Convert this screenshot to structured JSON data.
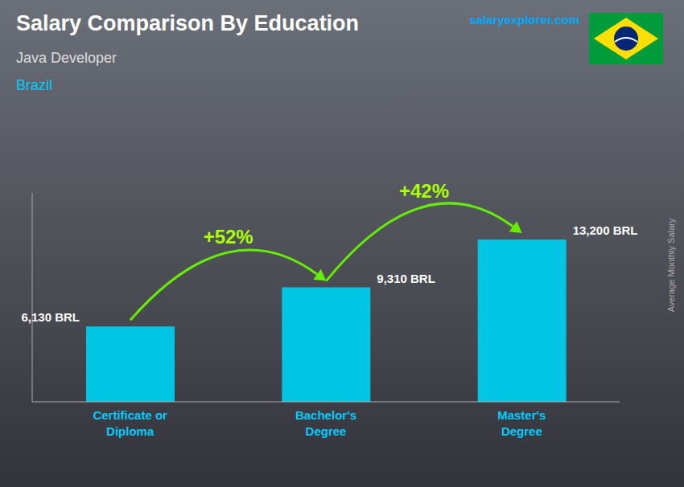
{
  "chart_data": {
    "type": "bar",
    "title": "Salary Comparison By Education",
    "subtitle": [
      "Java Developer",
      "Brazil"
    ],
    "ylabel": "Average Monthly Salary",
    "categories": [
      "Certificate or\nDiploma",
      "Bachelor's\nDegree",
      "Master's\nDegree"
    ],
    "values": [
      6130,
      9310,
      13200
    ],
    "value_labels": [
      "6,130 BRL",
      "9,310 BRL",
      "13,200 BRL"
    ],
    "data_labels": true,
    "annotations": [
      "+52%",
      "+42%",
      "salaryexplorer.com"
    ],
    "color": "#00C5E3",
    "ylim": [
      0,
      17000
    ],
    "grid": false,
    "tick_labels": "x"
  }
}
